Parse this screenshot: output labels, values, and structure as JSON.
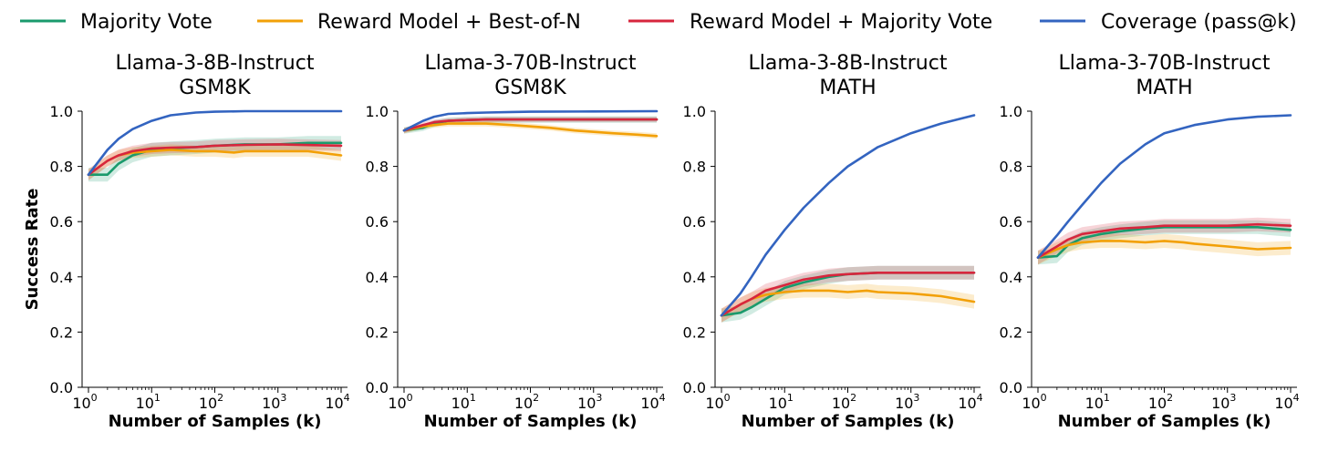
{
  "legend": [
    {
      "key": "majority_vote",
      "label": "Majority Vote",
      "color": "#1a9a6c"
    },
    {
      "key": "rm_bon",
      "label": "Reward Model + Best-of-N",
      "color": "#f2a007"
    },
    {
      "key": "rm_mv",
      "label": "Reward Model + Majority Vote",
      "color": "#d7263d"
    },
    {
      "key": "coverage",
      "label": "Coverage (pass@k)",
      "color": "#3364c0"
    }
  ],
  "chart_data": [
    {
      "type": "line",
      "title": [
        "Llama-3-8B-Instruct",
        "GSM8K"
      ],
      "xlabel": "Number of Samples (k)",
      "ylabel": "Success Rate",
      "xscale": "log",
      "xlim": [
        1,
        10000
      ],
      "ylim": [
        0,
        1.0
      ],
      "yticks": [
        "0.0",
        "0.2",
        "0.4",
        "0.6",
        "0.8",
        "1.0"
      ],
      "xticks": [
        {
          "base": "10",
          "exp": "0"
        },
        {
          "base": "10",
          "exp": "1"
        },
        {
          "base": "10",
          "exp": "2"
        },
        {
          "base": "10",
          "exp": "3"
        },
        {
          "base": "10",
          "exp": "4"
        }
      ],
      "grid": false,
      "series": [
        {
          "key": "coverage",
          "x": [
            1,
            2,
            3,
            5,
            10,
            20,
            50,
            100,
            300,
            1000,
            10000
          ],
          "y": [
            0.77,
            0.86,
            0.9,
            0.935,
            0.965,
            0.985,
            0.995,
            0.998,
            1.0,
            1.0,
            1.0
          ]
        },
        {
          "key": "majority_vote",
          "band": 0.025,
          "x": [
            1,
            2,
            3,
            5,
            10,
            20,
            50,
            100,
            300,
            1000,
            3000,
            10000
          ],
          "y": [
            0.77,
            0.77,
            0.81,
            0.84,
            0.86,
            0.865,
            0.87,
            0.875,
            0.88,
            0.88,
            0.885,
            0.885
          ]
        },
        {
          "key": "rm_bon",
          "band": 0.02,
          "x": [
            1,
            2,
            3,
            5,
            10,
            20,
            50,
            100,
            200,
            300,
            1000,
            3000,
            10000
          ],
          "y": [
            0.77,
            0.82,
            0.84,
            0.85,
            0.855,
            0.86,
            0.855,
            0.855,
            0.85,
            0.855,
            0.855,
            0.855,
            0.84
          ]
        },
        {
          "key": "rm_mv",
          "band": 0.02,
          "x": [
            1,
            2,
            3,
            5,
            10,
            20,
            50,
            100,
            300,
            1000,
            10000
          ],
          "y": [
            0.77,
            0.82,
            0.84,
            0.855,
            0.865,
            0.868,
            0.87,
            0.875,
            0.878,
            0.88,
            0.875
          ]
        }
      ]
    },
    {
      "type": "line",
      "title": [
        "Llama-3-70B-Instruct",
        "GSM8K"
      ],
      "xlabel": "Number of Samples (k)",
      "ylabel": "",
      "xscale": "log",
      "xlim": [
        1,
        10000
      ],
      "ylim": [
        0,
        1.0
      ],
      "yticks": [
        "0.0",
        "0.2",
        "0.4",
        "0.6",
        "0.8",
        "1.0"
      ],
      "xticks": [
        {
          "base": "10",
          "exp": "0"
        },
        {
          "base": "10",
          "exp": "1"
        },
        {
          "base": "10",
          "exp": "2"
        },
        {
          "base": "10",
          "exp": "3"
        },
        {
          "base": "10",
          "exp": "4"
        }
      ],
      "grid": false,
      "series": [
        {
          "key": "coverage",
          "x": [
            1,
            2,
            3,
            5,
            10,
            20,
            50,
            100,
            1000,
            10000
          ],
          "y": [
            0.93,
            0.965,
            0.98,
            0.99,
            0.993,
            0.995,
            0.997,
            0.998,
            0.999,
            1.0
          ]
        },
        {
          "key": "majority_vote",
          "band": 0.012,
          "x": [
            1,
            2,
            3,
            5,
            10,
            20,
            50,
            100,
            1000,
            10000
          ],
          "y": [
            0.93,
            0.94,
            0.955,
            0.965,
            0.968,
            0.97,
            0.97,
            0.97,
            0.97,
            0.97
          ]
        },
        {
          "key": "rm_bon",
          "band": 0.01,
          "x": [
            1,
            2,
            3,
            5,
            10,
            20,
            50,
            100,
            200,
            500,
            1000,
            2000,
            5000,
            10000
          ],
          "y": [
            0.93,
            0.945,
            0.95,
            0.955,
            0.955,
            0.955,
            0.95,
            0.945,
            0.94,
            0.93,
            0.925,
            0.92,
            0.915,
            0.91
          ]
        },
        {
          "key": "rm_mv",
          "band": 0.01,
          "x": [
            1,
            2,
            3,
            5,
            10,
            20,
            50,
            100,
            1000,
            10000
          ],
          "y": [
            0.93,
            0.95,
            0.96,
            0.965,
            0.968,
            0.97,
            0.97,
            0.97,
            0.97,
            0.97
          ]
        }
      ]
    },
    {
      "type": "line",
      "title": [
        "Llama-3-8B-Instruct",
        "MATH"
      ],
      "xlabel": "Number of Samples (k)",
      "ylabel": "",
      "xscale": "log",
      "xlim": [
        1,
        10000
      ],
      "ylim": [
        0,
        1.0
      ],
      "yticks": [
        "0.0",
        "0.2",
        "0.4",
        "0.6",
        "0.8",
        "1.0"
      ],
      "xticks": [
        {
          "base": "10",
          "exp": "0"
        },
        {
          "base": "10",
          "exp": "1"
        },
        {
          "base": "10",
          "exp": "2"
        },
        {
          "base": "10",
          "exp": "3"
        },
        {
          "base": "10",
          "exp": "4"
        }
      ],
      "grid": false,
      "series": [
        {
          "key": "coverage",
          "x": [
            1,
            2,
            3,
            5,
            10,
            20,
            50,
            100,
            300,
            1000,
            3000,
            10000
          ],
          "y": [
            0.26,
            0.34,
            0.4,
            0.48,
            0.57,
            0.65,
            0.74,
            0.8,
            0.87,
            0.92,
            0.955,
            0.985
          ]
        },
        {
          "key": "majority_vote",
          "band": 0.025,
          "x": [
            1,
            2,
            3,
            5,
            10,
            20,
            50,
            100,
            300,
            1000,
            10000
          ],
          "y": [
            0.26,
            0.27,
            0.29,
            0.32,
            0.36,
            0.38,
            0.4,
            0.41,
            0.415,
            0.415,
            0.415
          ]
        },
        {
          "key": "rm_bon",
          "band": 0.025,
          "x": [
            1,
            2,
            3,
            5,
            10,
            20,
            50,
            100,
            200,
            300,
            1000,
            3000,
            10000
          ],
          "y": [
            0.26,
            0.3,
            0.32,
            0.335,
            0.345,
            0.35,
            0.35,
            0.345,
            0.35,
            0.345,
            0.34,
            0.33,
            0.31
          ]
        },
        {
          "key": "rm_mv",
          "band": 0.025,
          "x": [
            1,
            2,
            3,
            5,
            10,
            20,
            50,
            100,
            300,
            1000,
            10000
          ],
          "y": [
            0.26,
            0.3,
            0.32,
            0.35,
            0.37,
            0.39,
            0.405,
            0.41,
            0.415,
            0.415,
            0.415
          ]
        }
      ]
    },
    {
      "type": "line",
      "title": [
        "Llama-3-70B-Instruct",
        "MATH"
      ],
      "xlabel": "Number of Samples (k)",
      "ylabel": "",
      "xscale": "log",
      "xlim": [
        1,
        10000
      ],
      "ylim": [
        0,
        1.0
      ],
      "yticks": [
        "0.0",
        "0.2",
        "0.4",
        "0.6",
        "0.8",
        "1.0"
      ],
      "xticks": [
        {
          "base": "10",
          "exp": "0"
        },
        {
          "base": "10",
          "exp": "1"
        },
        {
          "base": "10",
          "exp": "2"
        },
        {
          "base": "10",
          "exp": "3"
        },
        {
          "base": "10",
          "exp": "4"
        }
      ],
      "grid": false,
      "series": [
        {
          "key": "coverage",
          "x": [
            1,
            2,
            3,
            5,
            10,
            20,
            50,
            100,
            300,
            1000,
            3000,
            10000
          ],
          "y": [
            0.47,
            0.55,
            0.6,
            0.66,
            0.74,
            0.81,
            0.88,
            0.92,
            0.95,
            0.97,
            0.98,
            0.985
          ]
        },
        {
          "key": "majority_vote",
          "band": 0.025,
          "x": [
            1,
            2,
            3,
            5,
            10,
            20,
            50,
            100,
            300,
            1000,
            3000,
            10000
          ],
          "y": [
            0.47,
            0.475,
            0.515,
            0.54,
            0.555,
            0.565,
            0.575,
            0.58,
            0.58,
            0.58,
            0.58,
            0.57
          ]
        },
        {
          "key": "rm_bon",
          "band": 0.025,
          "x": [
            1,
            2,
            3,
            5,
            10,
            20,
            50,
            100,
            200,
            300,
            1000,
            3000,
            10000
          ],
          "y": [
            0.47,
            0.5,
            0.515,
            0.525,
            0.53,
            0.53,
            0.525,
            0.53,
            0.525,
            0.52,
            0.51,
            0.5,
            0.505
          ]
        },
        {
          "key": "rm_mv",
          "band": 0.025,
          "x": [
            1,
            2,
            3,
            5,
            10,
            20,
            50,
            100,
            300,
            1000,
            3000,
            10000
          ],
          "y": [
            0.47,
            0.51,
            0.535,
            0.555,
            0.565,
            0.575,
            0.58,
            0.585,
            0.585,
            0.585,
            0.59,
            0.585
          ]
        }
      ]
    }
  ]
}
